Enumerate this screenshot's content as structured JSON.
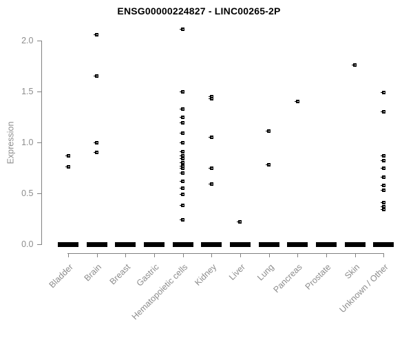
{
  "chart_data": {
    "type": "scatter",
    "subtype": "strip-plot",
    "title": "ENSG00000224827 - LINC00265-2P",
    "xlabel": "",
    "ylabel": "Expression",
    "ylim": [
      0.0,
      2.1
    ],
    "y_ticks": [
      0.0,
      0.5,
      1.0,
      1.5,
      2.0
    ],
    "y_tick_labels": [
      "0.0",
      "0.5",
      "1.0",
      "1.5",
      "2.0"
    ],
    "grid": false,
    "legend": false,
    "marker": "small-open-square",
    "point_color": "#000000",
    "axis_text_color": "#8c8c8c",
    "axis_line_color": "#808080",
    "zero_cluster_all_categories": true,
    "categories": [
      {
        "label": "Bladder",
        "values": [
          0.87,
          0.76
        ]
      },
      {
        "label": "Brain",
        "values": [
          2.06,
          1.65,
          1.0,
          0.9
        ]
      },
      {
        "label": "Breast",
        "values": []
      },
      {
        "label": "Gastric",
        "values": []
      },
      {
        "label": "Hematopoietic cells",
        "values": [
          2.11,
          1.5,
          1.33,
          1.25,
          1.19,
          1.09,
          1.0,
          0.91,
          0.87,
          0.84,
          0.8,
          0.77,
          0.75,
          0.7,
          0.62,
          0.55,
          0.49,
          0.38,
          0.24
        ]
      },
      {
        "label": "Kidney",
        "values": [
          1.45,
          1.43,
          1.05,
          0.75,
          0.59
        ]
      },
      {
        "label": "Liver",
        "values": [
          0.22
        ]
      },
      {
        "label": "Lung",
        "values": [
          1.11,
          0.78
        ]
      },
      {
        "label": "Pancreas",
        "values": [
          1.4
        ]
      },
      {
        "label": "Prostate",
        "values": []
      },
      {
        "label": "Skin",
        "values": [
          1.76
        ]
      },
      {
        "label": "Unknown / Other",
        "values": [
          1.49,
          1.3,
          0.87,
          0.82,
          0.75,
          0.66,
          0.58,
          0.53,
          0.41,
          0.37,
          0.34
        ]
      }
    ]
  }
}
